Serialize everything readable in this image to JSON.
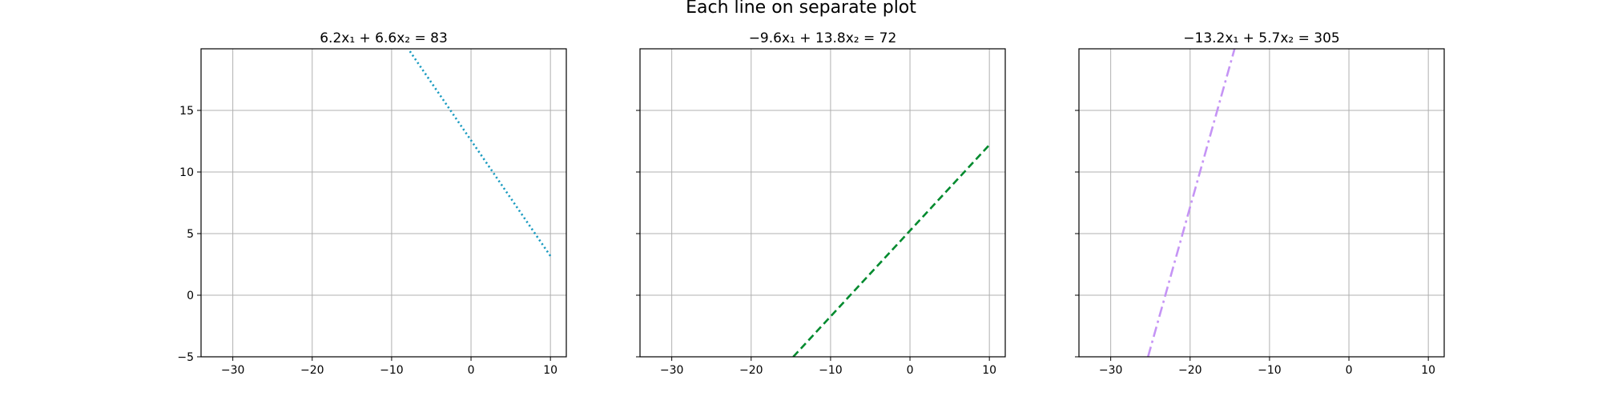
{
  "figure": {
    "title": "Each line on separate plot"
  },
  "chart_data": [
    {
      "type": "line",
      "title": "6.2x₁ + 6.6x₂ = 83",
      "equation": {
        "a": 6.2,
        "b": 6.6,
        "c": 83
      },
      "x": [
        -7.7,
        10
      ],
      "y": [
        19.8,
        3.18
      ],
      "xlim": [
        -34,
        12
      ],
      "ylim": [
        -5,
        20
      ],
      "xticks": [
        -30,
        -20,
        -10,
        0,
        10
      ],
      "yticks": [
        -5,
        0,
        5,
        10,
        15
      ],
      "xtick_labels": [
        "−30",
        "−20",
        "−10",
        "0",
        "10"
      ],
      "ytick_labels": [
        "−5",
        "0",
        "5",
        "10",
        "15"
      ],
      "show_y_labels": true,
      "line_color": "#1a9bc0",
      "line_style": "dotted",
      "grid": true
    },
    {
      "type": "line",
      "title": "−9.6x₁ + 13.8x₂ = 72",
      "equation": {
        "a": -9.6,
        "b": 13.8,
        "c": 72
      },
      "x": [
        -14.7,
        10
      ],
      "y": [
        -5,
        12.2
      ],
      "xlim": [
        -34,
        12
      ],
      "ylim": [
        -5,
        20
      ],
      "xticks": [
        -30,
        -20,
        -10,
        0,
        10
      ],
      "yticks": [
        -5,
        0,
        5,
        10,
        15
      ],
      "xtick_labels": [
        "−30",
        "−20",
        "−10",
        "0",
        "10"
      ],
      "ytick_labels": [],
      "show_y_labels": false,
      "line_color": "#008a2e",
      "line_style": "dashed",
      "grid": true
    },
    {
      "type": "line",
      "title": "−13.2x₁ + 5.7x₂ = 305",
      "equation": {
        "a": -13.2,
        "b": 5.7,
        "c": 305
      },
      "x": [
        -25.3,
        -14.4
      ],
      "y": [
        -5,
        20
      ],
      "xlim": [
        -34,
        12
      ],
      "ylim": [
        -5,
        20
      ],
      "xticks": [
        -30,
        -20,
        -10,
        0,
        10
      ],
      "yticks": [
        -5,
        0,
        5,
        10,
        15
      ],
      "xtick_labels": [
        "−30",
        "−20",
        "−10",
        "0",
        "10"
      ],
      "ytick_labels": [],
      "show_y_labels": false,
      "line_color": "#c594f5",
      "line_style": "dashdot",
      "grid": true
    }
  ]
}
